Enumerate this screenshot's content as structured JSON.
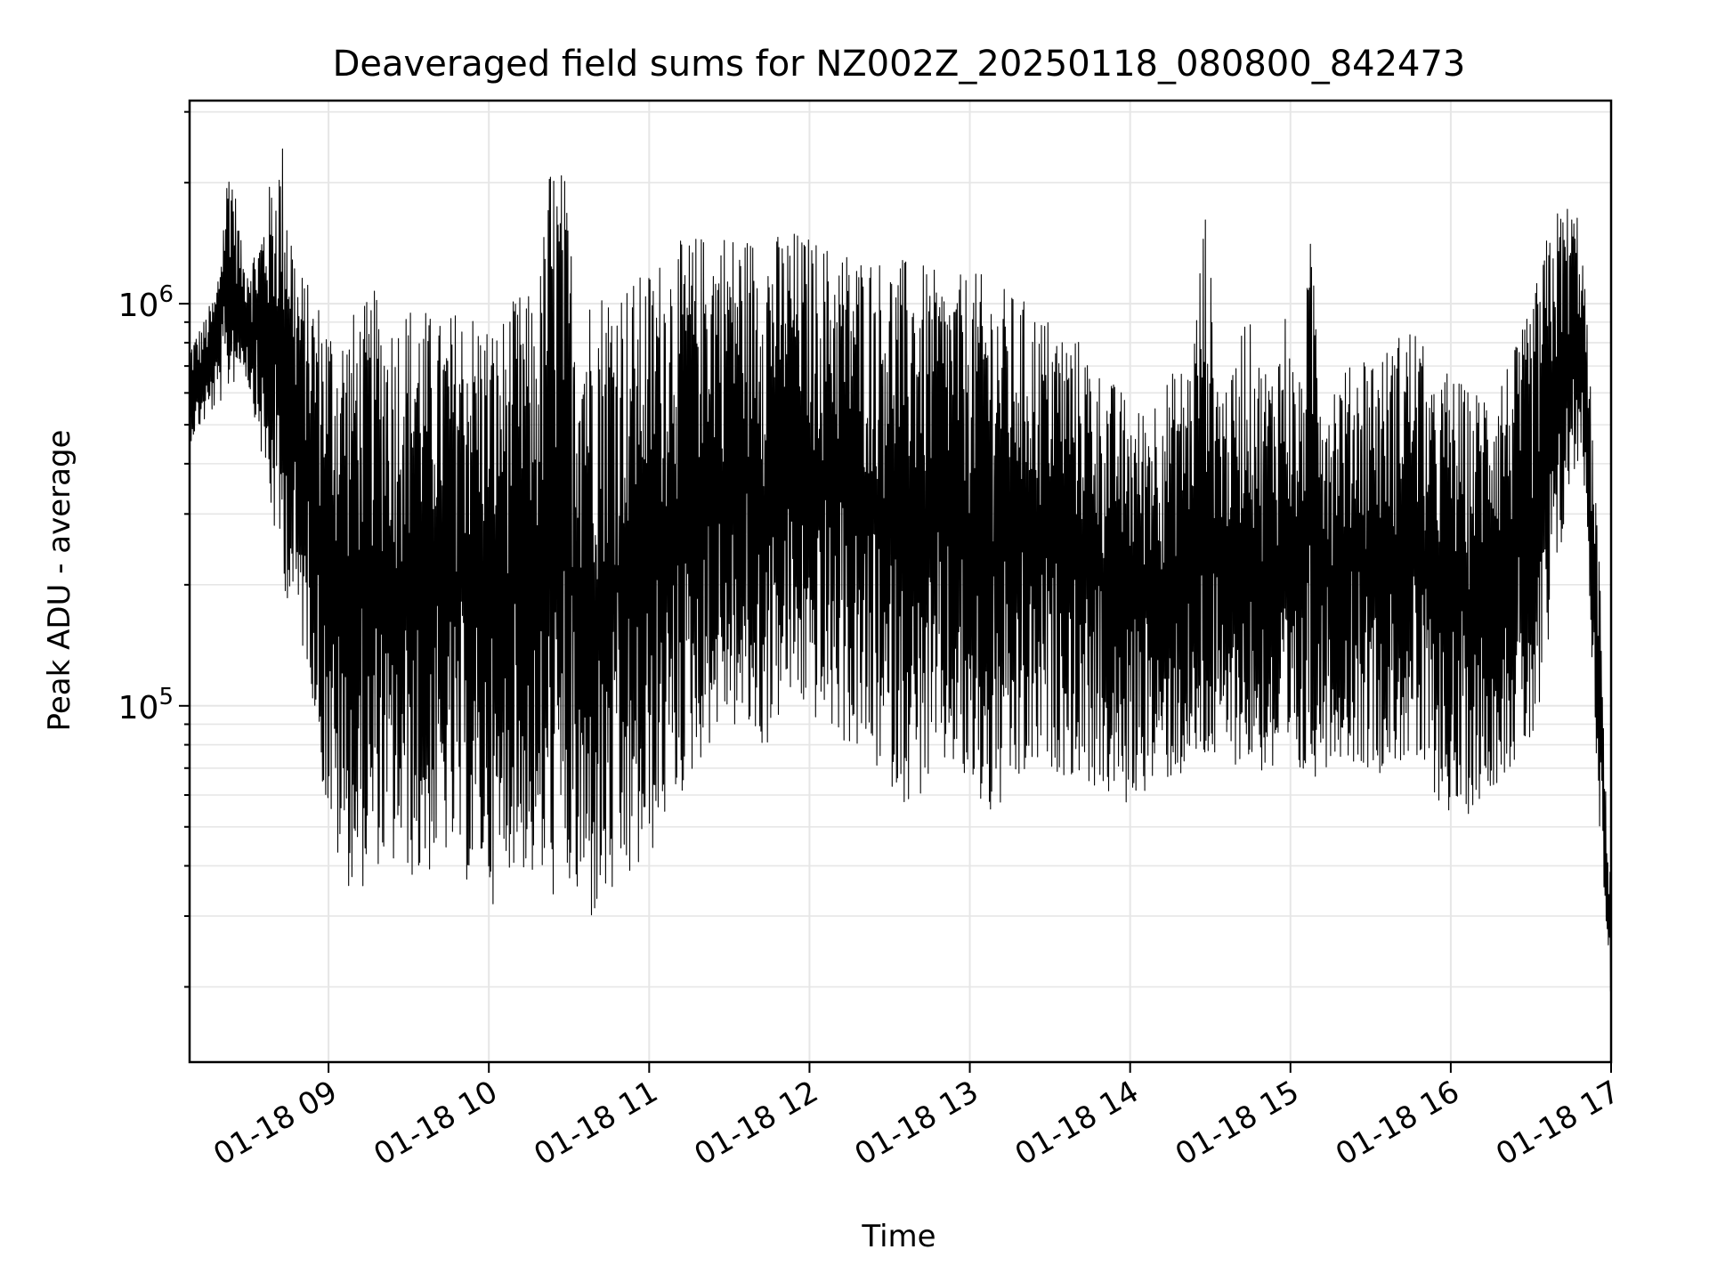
{
  "chart_data": {
    "type": "line",
    "title": "Deaveraged field sums for NZ002Z_20250118_080800_842473",
    "xlabel": "Time",
    "ylabel": "Peak ADU - average",
    "yscale": "log",
    "xlim": [
      "2025-01-18T08:08",
      "2025-01-18T17:00"
    ],
    "ylim": [
      13000,
      3200000
    ],
    "x_ticks": [
      {
        "t": "2025-01-18T09:00",
        "label": "01-18 09"
      },
      {
        "t": "2025-01-18T10:00",
        "label": "01-18 10"
      },
      {
        "t": "2025-01-18T11:00",
        "label": "01-18 11"
      },
      {
        "t": "2025-01-18T12:00",
        "label": "01-18 12"
      },
      {
        "t": "2025-01-18T13:00",
        "label": "01-18 13"
      },
      {
        "t": "2025-01-18T14:00",
        "label": "01-18 14"
      },
      {
        "t": "2025-01-18T15:00",
        "label": "01-18 15"
      },
      {
        "t": "2025-01-18T16:00",
        "label": "01-18 16"
      },
      {
        "t": "2025-01-18T17:00",
        "label": "01-18 17"
      }
    ],
    "y_ticks": [
      {
        "value": 100000,
        "base": "10",
        "exp": "5"
      },
      {
        "value": 1000000,
        "base": "10",
        "exp": "6"
      }
    ],
    "grid": true,
    "line_color": "#000000",
    "grid_color": "#e6e6e6",
    "series": [
      {
        "x": [
          "08:08",
          "08:13",
          "08:18",
          "08:23",
          "08:28",
          "08:33",
          "08:38",
          "08:43",
          "08:48",
          "08:53",
          "08:58",
          "09:03",
          "09:08",
          "09:13",
          "09:18",
          "09:23",
          "09:28",
          "09:33",
          "09:38",
          "09:43",
          "09:48",
          "09:53",
          "09:58",
          "10:03",
          "10:08",
          "10:13",
          "10:18",
          "10:23",
          "10:28",
          "10:33",
          "10:38",
          "10:43",
          "10:48",
          "10:53",
          "10:58",
          "11:03",
          "11:08",
          "11:13",
          "11:18",
          "11:23",
          "11:28",
          "11:33",
          "11:38",
          "11:43",
          "11:48",
          "11:53",
          "11:58",
          "12:03",
          "12:08",
          "12:13",
          "12:18",
          "12:23",
          "12:28",
          "12:33",
          "12:38",
          "12:43",
          "12:48",
          "12:53",
          "12:58",
          "13:03",
          "13:08",
          "13:13",
          "13:18",
          "13:23",
          "13:28",
          "13:33",
          "13:38",
          "13:43",
          "13:48",
          "13:53",
          "13:58",
          "14:03",
          "14:08",
          "14:13",
          "14:18",
          "14:23",
          "14:28",
          "14:33",
          "14:38",
          "14:43",
          "14:48",
          "14:53",
          "14:58",
          "15:03",
          "15:08",
          "15:13",
          "15:18",
          "15:23",
          "15:28",
          "15:33",
          "15:38",
          "15:43",
          "15:48",
          "15:53",
          "15:58",
          "16:03",
          "16:08",
          "16:13",
          "16:18",
          "16:23",
          "16:28",
          "16:33",
          "16:38",
          "16:43",
          "16:48",
          "16:50",
          "16:53",
          "16:56",
          "16:58",
          "17:00"
        ],
        "y_high": [
          800000,
          900000,
          1100000,
          2500000,
          1300000,
          1400000,
          2000000,
          2600000,
          1300000,
          1100000,
          1000000,
          900000,
          950000,
          1000000,
          1100000,
          950000,
          1000000,
          1050000,
          950000,
          900000,
          1000000,
          1000000,
          950000,
          900000,
          1000000,
          1100000,
          1000000,
          2400000,
          2200000,
          1100000,
          1100000,
          1150000,
          1200000,
          1150000,
          1200000,
          1300000,
          1400000,
          1450000,
          1500000,
          1500000,
          1550000,
          1500000,
          1500000,
          1500000,
          1500000,
          1550000,
          1500000,
          1450000,
          1400000,
          1400000,
          1350000,
          1350000,
          1300000,
          1300000,
          1300000,
          1250000,
          1200000,
          1150000,
          1200000,
          1200000,
          1150000,
          1100000,
          1050000,
          1000000,
          950000,
          900000,
          850000,
          800000,
          700000,
          650000,
          600000,
          550000,
          600000,
          650000,
          700000,
          750000,
          1800000,
          700000,
          650000,
          1000000,
          750000,
          700000,
          1000000,
          600000,
          1600000,
          650000,
          700000,
          700000,
          800000,
          750000,
          800000,
          900000,
          900000,
          600000,
          700000,
          650000,
          600000,
          650000,
          700000,
          750000,
          900000,
          1200000,
          1700000,
          1800000,
          1700000,
          1200000,
          500000,
          200000,
          60000,
          38000
        ],
        "y_low": [
          450000,
          500000,
          550000,
          600000,
          700000,
          500000,
          300000,
          200000,
          150000,
          120000,
          60000,
          40000,
          35000,
          35000,
          40000,
          38000,
          40000,
          35000,
          38000,
          42000,
          40000,
          35000,
          38000,
          30000,
          40000,
          38000,
          35000,
          32000,
          35000,
          30000,
          28000,
          30000,
          32000,
          35000,
          38000,
          45000,
          55000,
          60000,
          70000,
          80000,
          90000,
          85000,
          80000,
          75000,
          90000,
          100000,
          95000,
          90000,
          85000,
          80000,
          75000,
          70000,
          65000,
          60000,
          55000,
          60000,
          65000,
          70000,
          60000,
          55000,
          50000,
          55000,
          60000,
          65000,
          70000,
          68000,
          66000,
          65000,
          60000,
          58000,
          55000,
          60000,
          62000,
          64000,
          65000,
          66000,
          68000,
          70000,
          72000,
          70000,
          68000,
          65000,
          60000,
          62000,
          65000,
          70000,
          75000,
          72000,
          70000,
          68000,
          70000,
          72000,
          65000,
          60000,
          55000,
          50000,
          55000,
          60000,
          65000,
          70000,
          75000,
          80000,
          150000,
          300000,
          400000,
          350000,
          120000,
          45000,
          30000,
          17000
        ]
      }
    ]
  }
}
